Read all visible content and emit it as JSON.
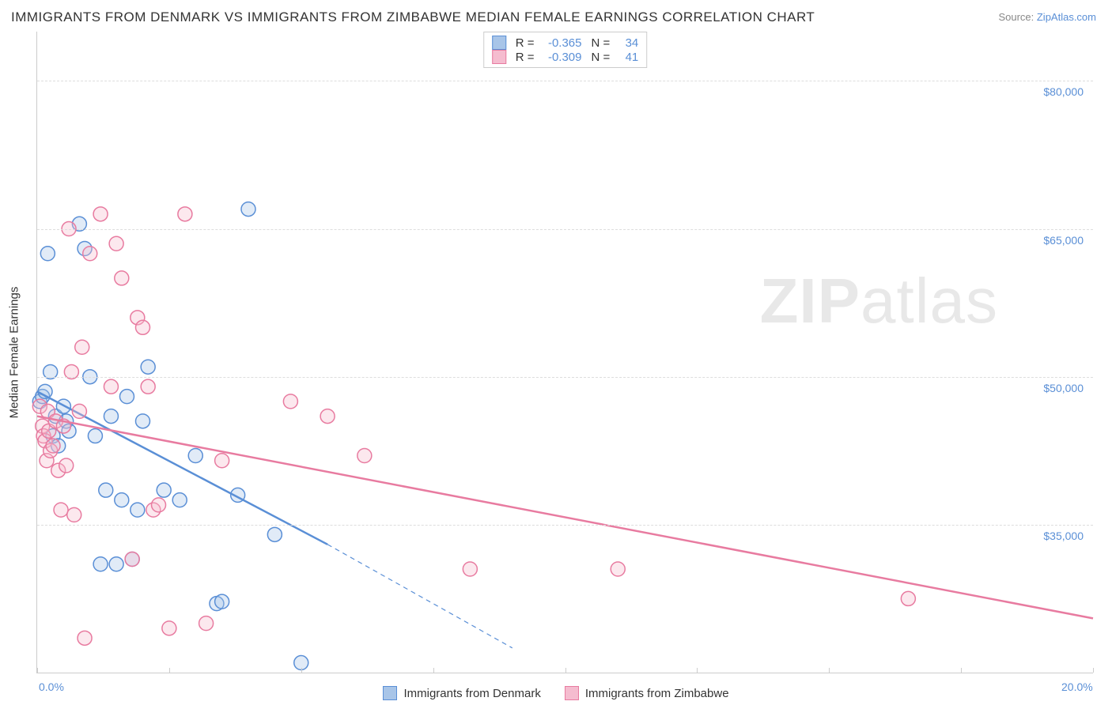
{
  "title": "IMMIGRANTS FROM DENMARK VS IMMIGRANTS FROM ZIMBABWE MEDIAN FEMALE EARNINGS CORRELATION CHART",
  "source_prefix": "Source: ",
  "source_link": "ZipAtlas.com",
  "y_axis_label": "Median Female Earnings",
  "watermark_zip": "ZIP",
  "watermark_atlas": "atlas",
  "chart": {
    "type": "scatter-with-regression",
    "xlim": [
      0,
      20
    ],
    "ylim": [
      20000,
      85000
    ],
    "x_ticks": [
      0,
      2.5,
      5,
      7.5,
      10,
      12.5,
      15,
      17.5,
      20
    ],
    "x_tick_labels": {
      "0": "0.0%",
      "20": "20.0%"
    },
    "y_gridlines": [
      35000,
      50000,
      65000,
      80000
    ],
    "y_tick_labels": {
      "35000": "$35,000",
      "50000": "$50,000",
      "65000": "$65,000",
      "80000": "$80,000"
    },
    "background_color": "#ffffff",
    "grid_color": "#dddddd",
    "axis_color": "#cccccc",
    "marker_radius": 9,
    "marker_stroke_width": 1.5,
    "marker_fill_opacity": 0.35,
    "line_width": 2.5,
    "series": [
      {
        "id": "denmark",
        "label": "Immigrants from Denmark",
        "color_stroke": "#5a8fd6",
        "color_fill": "#a8c5e8",
        "R": "-0.365",
        "N": "34",
        "regression": {
          "x1": 0,
          "y1": 48500,
          "x2": 5.5,
          "y2": 33000,
          "dash_to_x": 9.0,
          "dash_to_y": 22500
        },
        "points": [
          [
            0.05,
            47500
          ],
          [
            0.1,
            48000
          ],
          [
            0.15,
            48500
          ],
          [
            0.2,
            62500
          ],
          [
            0.25,
            50500
          ],
          [
            0.3,
            44000
          ],
          [
            0.35,
            46000
          ],
          [
            0.4,
            43000
          ],
          [
            0.5,
            47000
          ],
          [
            0.55,
            45500
          ],
          [
            0.6,
            44500
          ],
          [
            0.8,
            65500
          ],
          [
            0.9,
            63000
          ],
          [
            1.0,
            50000
          ],
          [
            1.1,
            44000
          ],
          [
            1.3,
            38500
          ],
          [
            1.4,
            46000
          ],
          [
            1.5,
            31000
          ],
          [
            1.6,
            37500
          ],
          [
            1.7,
            48000
          ],
          [
            1.8,
            31500
          ],
          [
            1.9,
            36500
          ],
          [
            2.0,
            45500
          ],
          [
            2.1,
            51000
          ],
          [
            2.4,
            38500
          ],
          [
            2.7,
            37500
          ],
          [
            3.0,
            42000
          ],
          [
            3.4,
            27000
          ],
          [
            3.5,
            27200
          ],
          [
            3.8,
            38000
          ],
          [
            4.0,
            67000
          ],
          [
            4.5,
            34000
          ],
          [
            5.0,
            21000
          ],
          [
            1.2,
            31000
          ]
        ]
      },
      {
        "id": "zimbabwe",
        "label": "Immigrants from Zimbabwe",
        "color_stroke": "#e87ba0",
        "color_fill": "#f5bccf",
        "R": "-0.309",
        "N": "41",
        "regression": {
          "x1": 0,
          "y1": 46000,
          "x2": 20,
          "y2": 25500
        },
        "points": [
          [
            0.05,
            47000
          ],
          [
            0.1,
            45000
          ],
          [
            0.12,
            44000
          ],
          [
            0.15,
            43500
          ],
          [
            0.18,
            41500
          ],
          [
            0.2,
            46500
          ],
          [
            0.22,
            44500
          ],
          [
            0.25,
            42500
          ],
          [
            0.3,
            43000
          ],
          [
            0.35,
            45500
          ],
          [
            0.4,
            40500
          ],
          [
            0.45,
            36500
          ],
          [
            0.5,
            45000
          ],
          [
            0.55,
            41000
          ],
          [
            0.6,
            65000
          ],
          [
            0.65,
            50500
          ],
          [
            0.7,
            36000
          ],
          [
            0.8,
            46500
          ],
          [
            0.85,
            53000
          ],
          [
            0.9,
            23500
          ],
          [
            1.0,
            62500
          ],
          [
            1.2,
            66500
          ],
          [
            1.4,
            49000
          ],
          [
            1.5,
            63500
          ],
          [
            1.6,
            60000
          ],
          [
            1.8,
            31500
          ],
          [
            1.9,
            56000
          ],
          [
            2.0,
            55000
          ],
          [
            2.1,
            49000
          ],
          [
            2.2,
            36500
          ],
          [
            2.3,
            37000
          ],
          [
            2.5,
            24500
          ],
          [
            2.8,
            66500
          ],
          [
            3.2,
            25000
          ],
          [
            3.5,
            41500
          ],
          [
            4.8,
            47500
          ],
          [
            5.5,
            46000
          ],
          [
            6.2,
            42000
          ],
          [
            8.2,
            30500
          ],
          [
            11.0,
            30500
          ],
          [
            16.5,
            27500
          ]
        ]
      }
    ]
  },
  "legend_bottom": [
    {
      "swatch_fill": "#a8c5e8",
      "swatch_stroke": "#5a8fd6",
      "label": "Immigrants from Denmark"
    },
    {
      "swatch_fill": "#f5bccf",
      "swatch_stroke": "#e87ba0",
      "label": "Immigrants from Zimbabwe"
    }
  ]
}
